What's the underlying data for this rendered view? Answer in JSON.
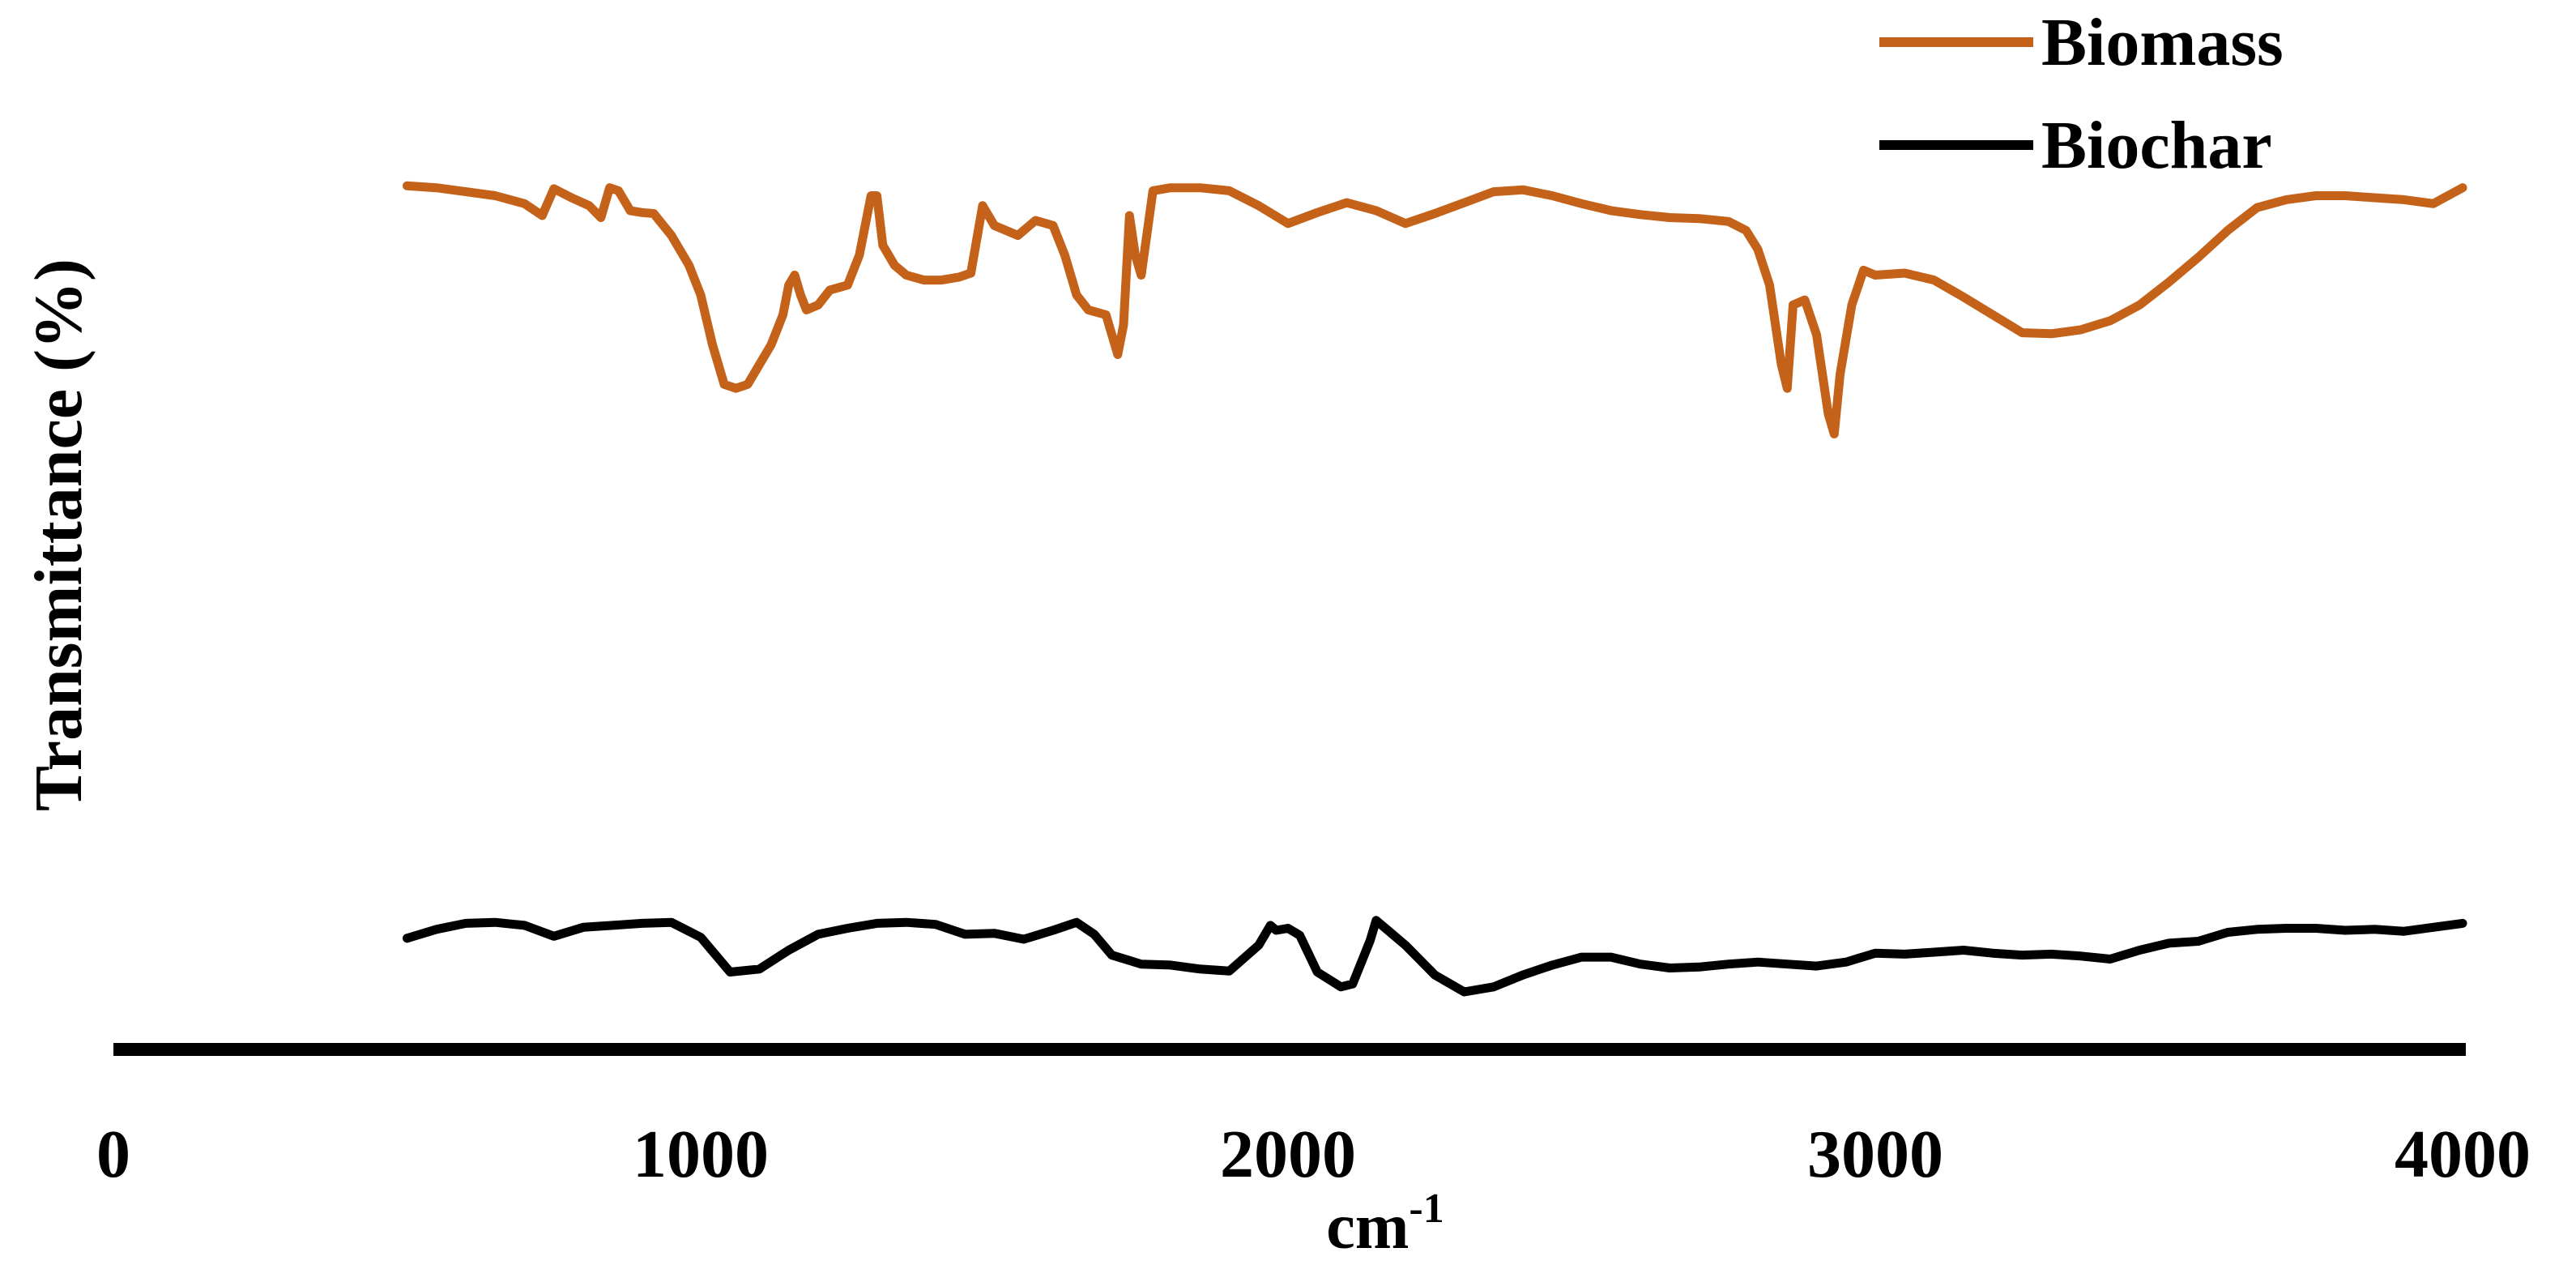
{
  "chart_data": {
    "type": "line",
    "title": "",
    "xlabel": "cm",
    "xlabel_superscript": "-1",
    "ylabel": "Transmittance (%)",
    "xlim": [
      0,
      4000
    ],
    "x_ticks": [
      0,
      1000,
      2000,
      3000,
      4000
    ],
    "x_tick_labels": [
      "0",
      "1000",
      "2000",
      "3000",
      "4000"
    ],
    "y_scale": "arbitrary, no ticks",
    "ylim": [
      0,
      100
    ],
    "grid": false,
    "legend_position": "top-right",
    "series": [
      {
        "name": "Biomass",
        "color": "#c5621a",
        "points": [
          [
            500,
            87
          ],
          [
            550,
            86.8
          ],
          [
            600,
            86.4
          ],
          [
            650,
            86
          ],
          [
            700,
            85.2
          ],
          [
            730,
            84
          ],
          [
            750,
            86.7
          ],
          [
            780,
            85.8
          ],
          [
            810,
            85
          ],
          [
            830,
            83.8
          ],
          [
            845,
            86.8
          ],
          [
            860,
            86.5
          ],
          [
            880,
            84.5
          ],
          [
            900,
            84.3
          ],
          [
            920,
            84.2
          ],
          [
            950,
            82
          ],
          [
            980,
            79
          ],
          [
            1000,
            76
          ],
          [
            1020,
            71
          ],
          [
            1040,
            67
          ],
          [
            1060,
            66.6
          ],
          [
            1080,
            67
          ],
          [
            1100,
            69
          ],
          [
            1120,
            71
          ],
          [
            1140,
            74
          ],
          [
            1150,
            77
          ],
          [
            1160,
            78
          ],
          [
            1170,
            76
          ],
          [
            1180,
            74.5
          ],
          [
            1200,
            75
          ],
          [
            1220,
            76.5
          ],
          [
            1250,
            77
          ],
          [
            1270,
            80
          ],
          [
            1290,
            86
          ],
          [
            1300,
            86
          ],
          [
            1310,
            81
          ],
          [
            1330,
            79
          ],
          [
            1350,
            78
          ],
          [
            1380,
            77.5
          ],
          [
            1410,
            77.5
          ],
          [
            1440,
            77.8
          ],
          [
            1460,
            78.2
          ],
          [
            1480,
            85
          ],
          [
            1500,
            83
          ],
          [
            1540,
            82
          ],
          [
            1570,
            83.5
          ],
          [
            1600,
            83
          ],
          [
            1620,
            80
          ],
          [
            1640,
            76
          ],
          [
            1660,
            74.5
          ],
          [
            1690,
            74
          ],
          [
            1710,
            70
          ],
          [
            1720,
            73
          ],
          [
            1730,
            84
          ],
          [
            1740,
            80
          ],
          [
            1750,
            78
          ],
          [
            1770,
            86.5
          ],
          [
            1800,
            86.8
          ],
          [
            1850,
            86.8
          ],
          [
            1900,
            86.5
          ],
          [
            1950,
            85
          ],
          [
            2000,
            83.2
          ],
          [
            2050,
            84.3
          ],
          [
            2100,
            85.3
          ],
          [
            2150,
            84.5
          ],
          [
            2200,
            83.2
          ],
          [
            2250,
            84.2
          ],
          [
            2300,
            85.3
          ],
          [
            2350,
            86.4
          ],
          [
            2400,
            86.6
          ],
          [
            2450,
            86
          ],
          [
            2500,
            85.2
          ],
          [
            2550,
            84.5
          ],
          [
            2600,
            84.1
          ],
          [
            2650,
            83.8
          ],
          [
            2700,
            83.7
          ],
          [
            2750,
            83.4
          ],
          [
            2780,
            82.5
          ],
          [
            2800,
            80.6
          ],
          [
            2820,
            77
          ],
          [
            2840,
            69
          ],
          [
            2850,
            66.6
          ],
          [
            2860,
            75
          ],
          [
            2880,
            75.5
          ],
          [
            2900,
            72
          ],
          [
            2920,
            64
          ],
          [
            2930,
            62
          ],
          [
            2940,
            68
          ],
          [
            2960,
            75
          ],
          [
            2980,
            78.5
          ],
          [
            3000,
            78
          ],
          [
            3050,
            78.2
          ],
          [
            3100,
            77.5
          ],
          [
            3150,
            75.8
          ],
          [
            3200,
            74
          ],
          [
            3250,
            72.2
          ],
          [
            3300,
            72.1
          ],
          [
            3350,
            72.5
          ],
          [
            3400,
            73.4
          ],
          [
            3450,
            75
          ],
          [
            3500,
            77.3
          ],
          [
            3550,
            79.8
          ],
          [
            3600,
            82.5
          ],
          [
            3650,
            84.8
          ],
          [
            3700,
            85.6
          ],
          [
            3750,
            86
          ],
          [
            3800,
            86
          ],
          [
            3850,
            85.8
          ],
          [
            3900,
            85.6
          ],
          [
            3950,
            85.2
          ],
          [
            4000,
            86.8
          ]
        ]
      },
      {
        "name": "Biochar",
        "color": "#000000",
        "points": [
          [
            500,
            11.2
          ],
          [
            550,
            12.1
          ],
          [
            600,
            12.7
          ],
          [
            650,
            12.8
          ],
          [
            700,
            12.5
          ],
          [
            750,
            11.4
          ],
          [
            800,
            12.3
          ],
          [
            850,
            12.5
          ],
          [
            900,
            12.7
          ],
          [
            950,
            12.8
          ],
          [
            1000,
            11.3
          ],
          [
            1050,
            7.8
          ],
          [
            1100,
            8.1
          ],
          [
            1150,
            10
          ],
          [
            1200,
            11.6
          ],
          [
            1250,
            12.2
          ],
          [
            1300,
            12.7
          ],
          [
            1350,
            12.8
          ],
          [
            1400,
            12.6
          ],
          [
            1450,
            11.6
          ],
          [
            1500,
            11.7
          ],
          [
            1550,
            11.1
          ],
          [
            1600,
            12
          ],
          [
            1640,
            12.8
          ],
          [
            1670,
            11.6
          ],
          [
            1700,
            9.5
          ],
          [
            1750,
            8.6
          ],
          [
            1800,
            8.5
          ],
          [
            1850,
            8.1
          ],
          [
            1900,
            7.9
          ],
          [
            1950,
            10.5
          ],
          [
            1970,
            12.5
          ],
          [
            1980,
            12
          ],
          [
            2000,
            12.2
          ],
          [
            2020,
            11.5
          ],
          [
            2050,
            7.8
          ],
          [
            2090,
            6.3
          ],
          [
            2110,
            6.6
          ],
          [
            2140,
            11
          ],
          [
            2150,
            13
          ],
          [
            2170,
            12
          ],
          [
            2200,
            10.5
          ],
          [
            2250,
            7.5
          ],
          [
            2300,
            5.8
          ],
          [
            2350,
            6.3
          ],
          [
            2400,
            7.5
          ],
          [
            2450,
            8.5
          ],
          [
            2500,
            9.3
          ],
          [
            2550,
            9.3
          ],
          [
            2600,
            8.6
          ],
          [
            2650,
            8.2
          ],
          [
            2700,
            8.3
          ],
          [
            2750,
            8.6
          ],
          [
            2800,
            8.8
          ],
          [
            2850,
            8.6
          ],
          [
            2900,
            8.4
          ],
          [
            2950,
            8.8
          ],
          [
            3000,
            9.7
          ],
          [
            3050,
            9.6
          ],
          [
            3100,
            9.8
          ],
          [
            3150,
            10
          ],
          [
            3200,
            9.7
          ],
          [
            3250,
            9.5
          ],
          [
            3300,
            9.6
          ],
          [
            3350,
            9.4
          ],
          [
            3400,
            9.1
          ],
          [
            3450,
            10
          ],
          [
            3500,
            10.7
          ],
          [
            3550,
            10.9
          ],
          [
            3600,
            11.8
          ],
          [
            3650,
            12.1
          ],
          [
            3700,
            12.2
          ],
          [
            3750,
            12.2
          ],
          [
            3800,
            12
          ],
          [
            3850,
            12.1
          ],
          [
            3900,
            11.9
          ],
          [
            3950,
            12.3
          ],
          [
            4000,
            12.7
          ]
        ]
      }
    ]
  }
}
